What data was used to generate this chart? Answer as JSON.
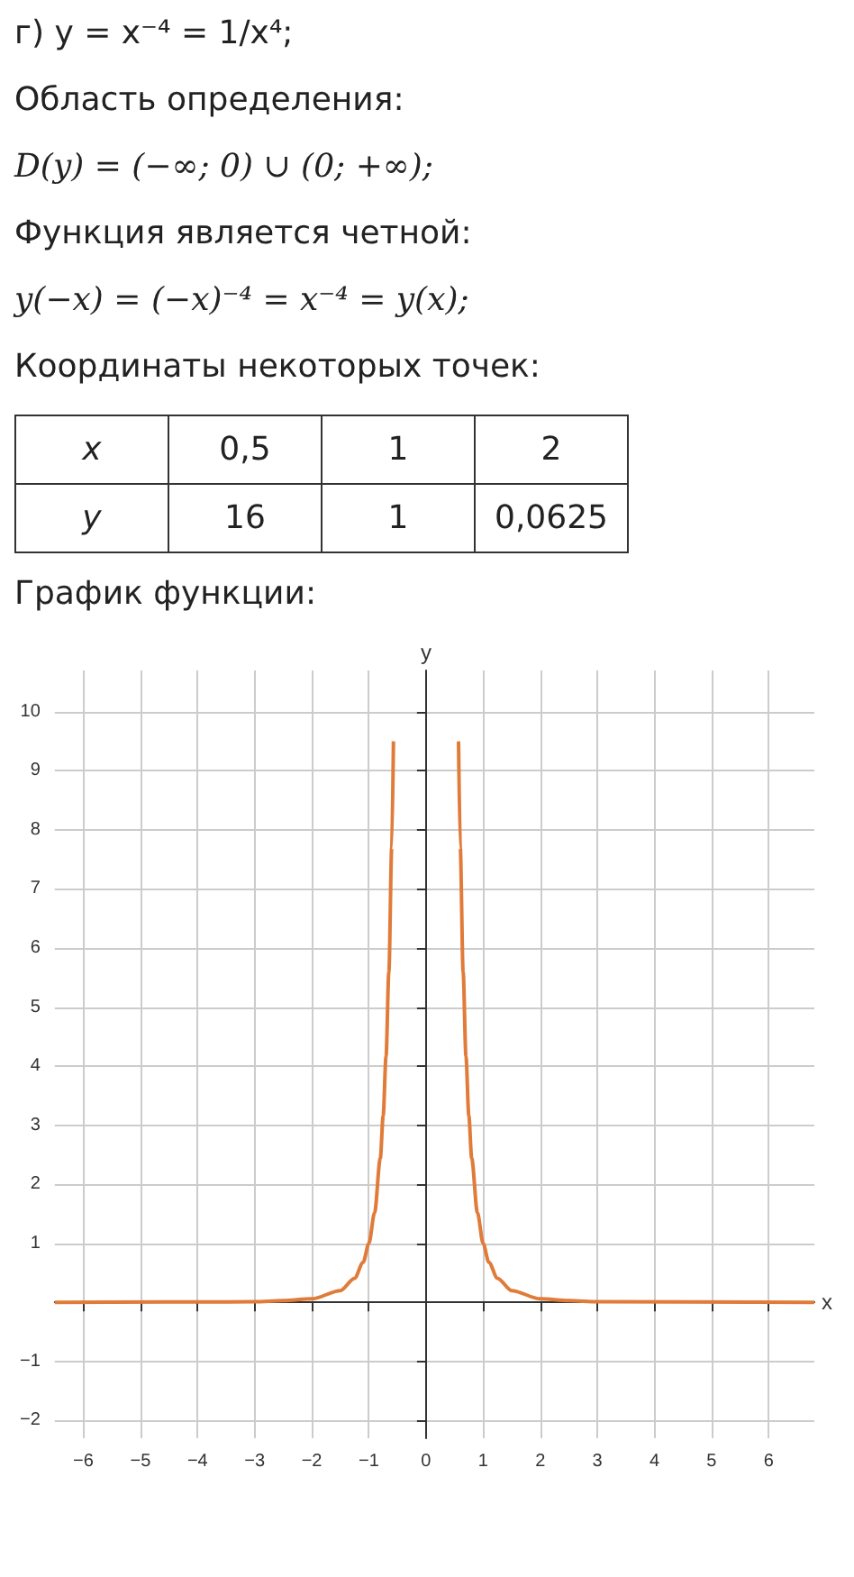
{
  "chart_data": {
    "type": "line",
    "title": "г) y = x⁻⁴ = 1/x⁴;",
    "annotations": [
      "Область определения:",
      "D(y) = (−∞; 0) ∪ (0; +∞);",
      "Функция является четной:",
      "y(−x) = (−x)⁻⁴ = x⁻⁴ = y(x);",
      "Координаты некоторых точек:",
      "x",
      "0,5",
      "1",
      "2",
      "y",
      "16",
      "1",
      "0,0625",
      "График функции:"
    ],
    "xlabel": "x",
    "ylabel": "y",
    "x": [
      -6.5,
      -3,
      -2.5,
      -2,
      -1.5,
      -1.25,
      -1.1,
      -1,
      -0.9,
      -0.8,
      -0.75,
      -0.7,
      -0.65,
      -0.6,
      -0.57,
      0,
      0.57,
      0.6,
      0.65,
      0.7,
      0.75,
      0.8,
      0.9,
      1,
      1.1,
      1.25,
      1.5,
      2,
      2.5,
      3,
      6.8
    ],
    "series": [
      {
        "color": "#e07b39",
        "values": [
          0,
          0.01,
          0.03,
          0.06,
          0.2,
          0.41,
          0.68,
          1,
          1.52,
          2.44,
          3.16,
          4.16,
          5.6,
          7.7,
          9.5,
          null,
          9.5,
          7.7,
          5.6,
          4.16,
          3.16,
          2.44,
          1.52,
          1,
          0.68,
          0.41,
          0.2,
          0.06,
          0.03,
          0.01,
          0
        ]
      }
    ],
    "xlim": [
      -6.5,
      6.8
    ],
    "ylim": [
      -2.3,
      10.7
    ],
    "xticks": [
      -6,
      -5,
      -4,
      -3,
      -2,
      -1,
      0,
      1,
      2,
      3,
      4,
      5,
      6
    ],
    "yticks": [
      -2,
      -1,
      {
        "value": 0,
        "label": null
      },
      1,
      2,
      3,
      4,
      5,
      6,
      7,
      8,
      9,
      10
    ],
    "grid": true,
    "marker": "none",
    "line_style": "solid"
  }
}
